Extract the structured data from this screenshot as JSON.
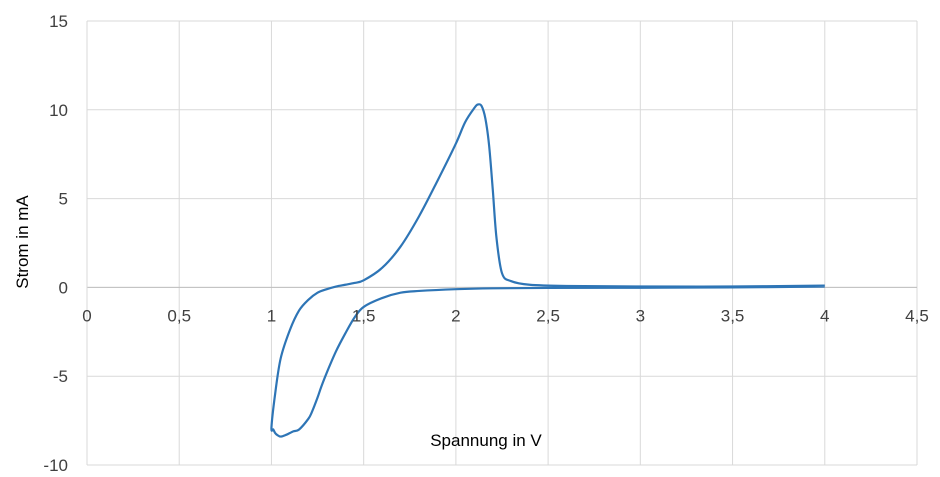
{
  "chart_data": {
    "type": "line",
    "title": "",
    "xlabel": "Spannung in V",
    "ylabel": "Strom in mA",
    "xlim": [
      0,
      4.5
    ],
    "ylim": [
      -10,
      15
    ],
    "x_ticks": [
      0,
      0.5,
      1,
      1.5,
      2,
      2.5,
      3,
      3.5,
      4,
      4.5
    ],
    "x_tick_labels": [
      "0",
      "0,5",
      "1",
      "1,5",
      "2",
      "2,5",
      "3",
      "3,5",
      "4",
      "4,5"
    ],
    "y_ticks": [
      -10,
      -5,
      0,
      5,
      10,
      15
    ],
    "y_tick_labels": [
      "-10",
      "-5",
      "0",
      "5",
      "10",
      "15"
    ],
    "grid": true,
    "legend": "none",
    "color": "#2E75B6",
    "series": [
      {
        "x": [
          4.0,
          3.5,
          3.0,
          2.5,
          2.2,
          2.0,
          1.8,
          1.7,
          1.6,
          1.5,
          1.45,
          1.4,
          1.35,
          1.3,
          1.27,
          1.25,
          1.22,
          1.2,
          1.15,
          1.12,
          1.1,
          1.08,
          1.05,
          1.03,
          1.02,
          1.01,
          1.0,
          1.02,
          1.05,
          1.1,
          1.15,
          1.2,
          1.25,
          1.3,
          1.35,
          1.4,
          1.45,
          1.5,
          1.6,
          1.7,
          1.8,
          1.9,
          2.0,
          2.05,
          2.1,
          2.12,
          2.14,
          2.16,
          2.18,
          2.2,
          2.22,
          2.25,
          2.3,
          2.4,
          2.6,
          3.0,
          3.5,
          4.0
        ],
        "y": [
          0.05,
          0.0,
          -0.02,
          -0.03,
          -0.05,
          -0.1,
          -0.2,
          -0.3,
          -0.6,
          -1.1,
          -1.7,
          -2.6,
          -3.6,
          -4.8,
          -5.6,
          -6.2,
          -7.0,
          -7.4,
          -8.0,
          -8.1,
          -8.2,
          -8.3,
          -8.4,
          -8.3,
          -8.2,
          -8.0,
          -7.9,
          -6.0,
          -4.0,
          -2.4,
          -1.3,
          -0.7,
          -0.3,
          -0.1,
          0.05,
          0.15,
          0.25,
          0.4,
          1.1,
          2.3,
          4.0,
          6.0,
          8.1,
          9.3,
          10.1,
          10.3,
          10.2,
          9.5,
          8.0,
          5.5,
          2.8,
          0.8,
          0.35,
          0.15,
          0.08,
          0.05,
          0.05,
          0.1
        ]
      }
    ]
  }
}
